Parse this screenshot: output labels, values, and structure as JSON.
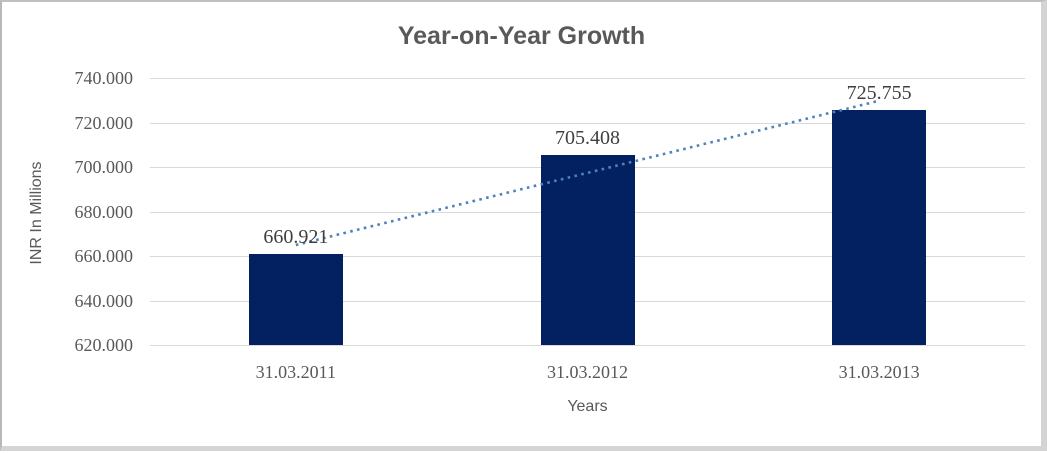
{
  "chart_data": {
    "type": "bar",
    "title": "Year-on-Year Growth",
    "xlabel": "Years",
    "ylabel": "INR In Millions",
    "categories": [
      "31.03.2011",
      "31.03.2012",
      "31.03.2013"
    ],
    "values": [
      660.921,
      705.408,
      725.755
    ],
    "data_labels": [
      "660.921",
      "705.408",
      "725.755"
    ],
    "y_ticks": [
      "740.000",
      "720.000",
      "700.000",
      "680.000",
      "660.000",
      "640.000",
      "620.000"
    ],
    "ylim": [
      620,
      740
    ],
    "y_tick_step": 20,
    "grid": "horizontal-only",
    "legend": "none",
    "trendline": {
      "type": "linear",
      "style": "dotted"
    }
  },
  "colors": {
    "bar": "#032161",
    "trendline": "#4f81bd",
    "gridline": "#d9d9d9",
    "title_text": "#595959",
    "axis_title_text": "#595959",
    "tick_text": "#595959",
    "data_label_text": "#3f3f3f",
    "frame_border": "#c0c0c0",
    "frame_shadow": "#d4d4d4",
    "background": "#ffffff"
  }
}
